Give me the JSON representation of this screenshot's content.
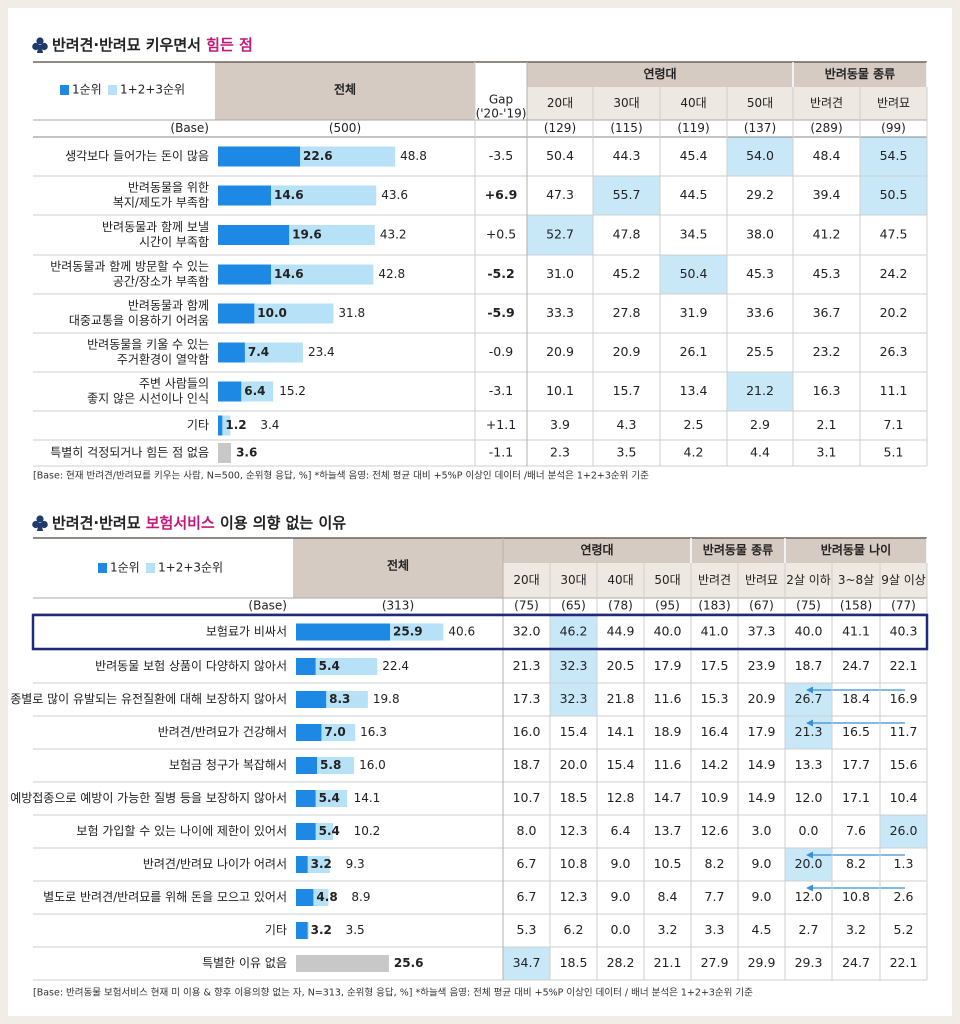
{
  "highlight_color": "#c8e8f8",
  "sections": [
    {
      "title": [
        {
          "text": "반려견·반려묘 키우면서 ",
          "color": "#222222"
        },
        {
          "text": "힘든 점",
          "color": "#c2187a"
        }
      ],
      "legend": [
        {
          "label": "1순위",
          "color": "#1e88e5"
        },
        {
          "label": "1+2+3순위",
          "color": "#b7e1f7"
        }
      ],
      "header": {
        "total": "전체",
        "gap": [
          "Gap",
          "('20-'19)"
        ],
        "groups": [
          {
            "name": "연령대",
            "columns": [
              "20대",
              "30대",
              "40대",
              "50대"
            ]
          },
          {
            "name": "반려동물 종류",
            "columns": [
              "반려견",
              "반려묘"
            ]
          }
        ]
      },
      "base": {
        "label": "(Base)",
        "total": "(500)",
        "columns": [
          "(129)",
          "(115)",
          "(119)",
          "(137)",
          "(289)",
          "(99)"
        ]
      },
      "rows": [
        {
          "label": [
            "생각보다 들어가는 돈이 많음"
          ],
          "rank1": "22.6",
          "rank123": "48.8",
          "gap": "-3.5",
          "values": [
            "50.4",
            "44.3",
            "45.4",
            "54.0",
            "48.4",
            "54.5"
          ],
          "highlight": [
            3,
            5
          ]
        },
        {
          "label": [
            "반려동물을 위한",
            "복지/제도가 부족함"
          ],
          "rank1": "14.6",
          "rank123": "43.6",
          "gap": "+6.9",
          "gap_color": "#1f2a8a",
          "values": [
            "47.3",
            "55.7",
            "44.5",
            "29.2",
            "39.4",
            "50.5"
          ],
          "highlight": [
            1,
            5
          ]
        },
        {
          "label": [
            "반려동물과 함께 보낼",
            "시간이 부족함"
          ],
          "rank1": "19.6",
          "rank123": "43.2",
          "gap": "+0.5",
          "values": [
            "52.7",
            "47.8",
            "34.5",
            "38.0",
            "41.2",
            "47.5"
          ],
          "highlight": [
            0
          ]
        },
        {
          "label": [
            "반려동물과 함께 방문할 수 있는",
            "공간/장소가 부족함"
          ],
          "rank1": "14.6",
          "rank123": "42.8",
          "gap": "-5.2",
          "gap_color": "#d32f2f",
          "values": [
            "31.0",
            "45.2",
            "50.4",
            "45.3",
            "45.3",
            "24.2"
          ],
          "highlight": [
            2
          ]
        },
        {
          "label": [
            "반려동물과 함께",
            "대중교통을 이용하기 어려움"
          ],
          "rank1": "10.0",
          "rank123": "31.8",
          "gap": "-5.9",
          "gap_color": "#d32f2f",
          "values": [
            "33.3",
            "27.8",
            "31.9",
            "33.6",
            "36.7",
            "20.2"
          ]
        },
        {
          "label": [
            "반려동물을 키울 수 있는",
            "주거환경이 열악함"
          ],
          "rank1": "7.4",
          "rank123": "23.4",
          "gap": "-0.9",
          "values": [
            "20.9",
            "20.9",
            "26.1",
            "25.5",
            "23.2",
            "26.3"
          ]
        },
        {
          "label": [
            "주변 사람들의",
            "좋지 않은 시선이나 인식"
          ],
          "rank1": "6.4",
          "rank123": "15.2",
          "gap": "-3.1",
          "values": [
            "10.1",
            "15.7",
            "13.4",
            "21.2",
            "16.3",
            "11.1"
          ],
          "highlight": [
            3
          ]
        },
        {
          "label": [
            "기타"
          ],
          "rank1": "1.2",
          "rank123": "3.4",
          "gap": "+1.1",
          "values": [
            "3.9",
            "4.3",
            "2.5",
            "2.9",
            "2.1",
            "7.1"
          ]
        },
        {
          "label": [
            "특별히 걱정되거나 힘든 점 없음"
          ],
          "rank123": "3.6",
          "bar_color": "#c8c8c8",
          "gap": "-1.1",
          "values": [
            "2.3",
            "3.5",
            "4.2",
            "4.4",
            "3.1",
            "5.1"
          ]
        }
      ],
      "footnote": "[Base: 현재 반려견/반려묘를 키우는 사람, N=500, 순위형 응답, %]  *하늘색 음영: 전체 평균 대비 +5%P 이상인 데이터 /배너 분석은 1+2+3순위 기준"
    },
    {
      "title": [
        {
          "text": "반려견·반려묘 ",
          "color": "#222222"
        },
        {
          "text": "보험서비스",
          "color": "#c2187a"
        },
        {
          "text": " 이용 의향 없는 이유",
          "color": "#222222"
        }
      ],
      "legend": [
        {
          "label": "1순위",
          "color": "#1e88e5"
        },
        {
          "label": "1+2+3순위",
          "color": "#b7e1f7"
        }
      ],
      "header": {
        "total": "전체",
        "groups": [
          {
            "name": "연령대",
            "columns": [
              "20대",
              "30대",
              "40대",
              "50대"
            ]
          },
          {
            "name": "반려동물 종류",
            "columns": [
              "반려견",
              "반려묘"
            ]
          },
          {
            "name": "반려동물 나이",
            "columns": [
              "2살 이하",
              "3~8살",
              "9살 이상"
            ]
          }
        ]
      },
      "base": {
        "label": "(Base)",
        "total": "(313)",
        "columns": [
          "(75)",
          "(65)",
          "(78)",
          "(95)",
          "(183)",
          "(67)",
          "(75)",
          "(158)",
          "(77)"
        ]
      },
      "outlined_row": 0,
      "outline_color": "#1f2a7a",
      "arrows": [
        2,
        3,
        7,
        8
      ],
      "rows": [
        {
          "label": [
            "보험료가 비싸서"
          ],
          "rank1": "25.9",
          "rank123": "40.6",
          "values": [
            "32.0",
            "46.2",
            "44.9",
            "40.0",
            "41.0",
            "37.3",
            "40.0",
            "41.1",
            "40.3"
          ],
          "highlight": [
            1
          ]
        },
        {
          "label": [
            "반려동물 보험 상품이 다양하지 않아서"
          ],
          "rank1": "5.4",
          "rank123": "22.4",
          "values": [
            "21.3",
            "32.3",
            "20.5",
            "17.9",
            "17.5",
            "23.9",
            "18.7",
            "24.7",
            "22.1"
          ],
          "highlight": [
            1
          ]
        },
        {
          "label": [
            "종별로 많이 유발되는 유전질환에 대해 보장하지 않아서"
          ],
          "rank1": "8.3",
          "rank123": "19.8",
          "values": [
            "17.3",
            "32.3",
            "21.8",
            "11.6",
            "15.3",
            "20.9",
            "26.7",
            "18.4",
            "16.9"
          ],
          "highlight": [
            1,
            6
          ]
        },
        {
          "label": [
            "반려견/반려묘가 건강해서"
          ],
          "rank1": "7.0",
          "rank123": "16.3",
          "values": [
            "16.0",
            "15.4",
            "14.1",
            "18.9",
            "16.4",
            "17.9",
            "21.3",
            "16.5",
            "11.7"
          ],
          "highlight": [
            6
          ]
        },
        {
          "label": [
            "보험금 청구가 복잡해서"
          ],
          "rank1": "5.8",
          "rank123": "16.0",
          "values": [
            "18.7",
            "20.0",
            "15.4",
            "11.6",
            "14.2",
            "14.9",
            "13.3",
            "17.7",
            "15.6"
          ]
        },
        {
          "label": [
            "예방접종으로 예방이 가능한 질병 등을 보장하지 않아서"
          ],
          "rank1": "5.4",
          "rank123": "14.1",
          "values": [
            "10.7",
            "18.5",
            "12.8",
            "14.7",
            "10.9",
            "14.9",
            "12.0",
            "17.1",
            "10.4"
          ]
        },
        {
          "label": [
            "보험 가입할 수 있는 나이에 제한이 있어서"
          ],
          "rank1": "5.4",
          "rank123": "10.2",
          "values": [
            "8.0",
            "12.3",
            "6.4",
            "13.7",
            "12.6",
            "3.0",
            "0.0",
            "7.6",
            "26.0"
          ],
          "highlight": [
            8
          ]
        },
        {
          "label": [
            "반려견/반려묘 나이가 어려서"
          ],
          "rank1": "3.2",
          "rank123": "9.3",
          "values": [
            "6.7",
            "10.8",
            "9.0",
            "10.5",
            "8.2",
            "9.0",
            "20.0",
            "8.2",
            "1.3"
          ],
          "highlight": [
            6
          ]
        },
        {
          "label": [
            "별도로 반려견/반려묘를 위해 돈을 모으고 있어서"
          ],
          "rank1": "4.8",
          "rank123": "8.9",
          "values": [
            "6.7",
            "12.3",
            "9.0",
            "8.4",
            "7.7",
            "9.0",
            "12.0",
            "10.8",
            "2.6"
          ]
        },
        {
          "label": [
            "기타"
          ],
          "rank1": "3.2",
          "rank123": "3.5",
          "values": [
            "5.3",
            "6.2",
            "0.0",
            "3.2",
            "3.3",
            "4.5",
            "2.7",
            "3.2",
            "5.2"
          ]
        },
        {
          "label": [
            "특별한 이유 없음"
          ],
          "rank123": "25.6",
          "bar_color": "#c8c8c8",
          "values": [
            "34.7",
            "18.5",
            "28.2",
            "21.1",
            "27.9",
            "29.9",
            "29.3",
            "24.7",
            "22.1"
          ],
          "highlight": [
            0
          ]
        }
      ],
      "footnote": "[Base: 반려동물 보험서비스 현재 미 이용 & 향후 이용의향 없는 자, N=313, 순위형 응답, %] *하늘색 음영: 전체 평균 대비 +5%P 이상인 데이터 / 배너 분석은 1+2+3순위 기준"
    }
  ]
}
